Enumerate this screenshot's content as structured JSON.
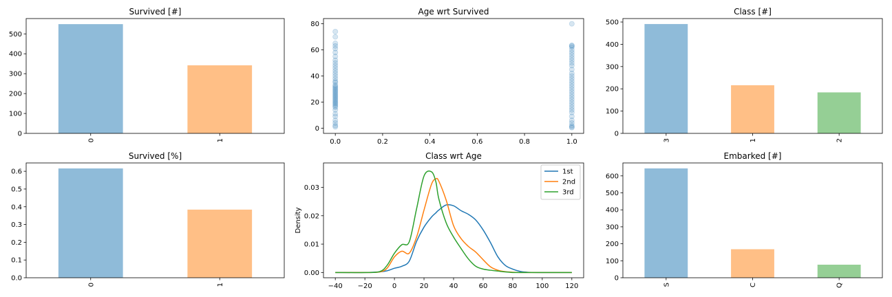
{
  "chart_data": [
    {
      "id": "survived_count",
      "type": "bar",
      "title": "Survived [#]",
      "categories": [
        "0",
        "1"
      ],
      "values": [
        549,
        342
      ],
      "colors": [
        "#8fbbd9",
        "#ffbf86"
      ],
      "ylim": [
        0,
        577
      ],
      "yticks": [
        0,
        100,
        200,
        300,
        400,
        500
      ],
      "xlabel": "",
      "ylabel": ""
    },
    {
      "id": "age_wrt_survived",
      "type": "scatter",
      "title": "Age wrt Survived",
      "color": "#1f77b4",
      "alpha": 0.1,
      "xlim": [
        -0.05,
        1.05
      ],
      "ylim": [
        -4,
        84
      ],
      "xticks": [
        "0.0",
        "0.2",
        "0.4",
        "0.6",
        "0.8",
        "1.0"
      ],
      "yticks": [
        "0",
        "20",
        "40",
        "60",
        "80"
      ],
      "x": [
        0,
        0,
        0,
        0,
        0,
        0,
        0,
        0,
        0,
        0,
        0,
        0,
        0,
        0,
        0,
        0,
        0,
        0,
        0,
        0,
        0,
        0,
        0,
        0,
        0,
        0,
        0,
        0,
        0,
        0,
        0,
        0,
        0,
        0,
        0,
        0,
        0,
        0,
        0,
        0,
        0,
        0,
        1,
        1,
        1,
        1,
        1,
        1,
        1,
        1,
        1,
        1,
        1,
        1,
        1,
        1,
        1,
        1,
        1,
        1,
        1,
        1,
        1,
        1,
        1,
        1,
        1,
        1,
        1,
        1,
        1,
        1,
        1,
        1,
        1,
        1
      ],
      "y": [
        1,
        2,
        4,
        6,
        9,
        11,
        14,
        16,
        17,
        18,
        19,
        20,
        21,
        22,
        23,
        24,
        25,
        26,
        27,
        28,
        29,
        30,
        31,
        32,
        33,
        35,
        36,
        38,
        40,
        42,
        44,
        46,
        48,
        50,
        52,
        55,
        58,
        61,
        63,
        65,
        70,
        74,
        0.4,
        1,
        2,
        4,
        6,
        9,
        12,
        14,
        16,
        18,
        20,
        22,
        24,
        26,
        28,
        30,
        32,
        34,
        36,
        38,
        40,
        42,
        45,
        48,
        50,
        52,
        54,
        56,
        58,
        60,
        62,
        63,
        63.5,
        80
      ],
      "xlabel": "",
      "ylabel": ""
    },
    {
      "id": "class_count",
      "type": "bar",
      "title": "Class [#]",
      "categories": [
        "3",
        "1",
        "2"
      ],
      "values": [
        491,
        216,
        184
      ],
      "colors": [
        "#8fbbd9",
        "#ffbf86",
        "#95cf95"
      ],
      "ylim": [
        0,
        515.5
      ],
      "yticks": [
        0,
        100,
        200,
        300,
        400,
        500
      ],
      "xlabel": "",
      "ylabel": ""
    },
    {
      "id": "survived_pct",
      "type": "bar",
      "title": "Survived [%]",
      "categories": [
        "0",
        "1"
      ],
      "values": [
        0.616,
        0.384
      ],
      "colors": [
        "#8fbbd9",
        "#ffbf86"
      ],
      "ylim": [
        0,
        0.647
      ],
      "yticks": [
        "0.0",
        "0.1",
        "0.2",
        "0.3",
        "0.4",
        "0.5",
        "0.6"
      ],
      "xlabel": "",
      "ylabel": ""
    },
    {
      "id": "class_wrt_age",
      "type": "line",
      "title": "Class wrt Age",
      "xlabel": "",
      "ylabel": "Density",
      "xlim": [
        -48,
        128
      ],
      "ylim": [
        -0.00185,
        0.0386
      ],
      "xticks": [
        -40,
        -20,
        0,
        20,
        40,
        60,
        80,
        100,
        120
      ],
      "yticks": [
        "0.00",
        "0.01",
        "0.02",
        "0.03"
      ],
      "legend_position": "top-right",
      "x": [
        -40,
        -20,
        -10,
        -5,
        0,
        5,
        10,
        15,
        20,
        25,
        28,
        30,
        35,
        40,
        45,
        50,
        55,
        60,
        65,
        70,
        75,
        80,
        85,
        90,
        100,
        120
      ],
      "series": [
        {
          "name": "1st",
          "color": "#1f77b4",
          "values": [
            0,
            0,
            0.0002,
            0.0006,
            0.0015,
            0.0022,
            0.004,
            0.011,
            0.016,
            0.0195,
            0.021,
            0.022,
            0.0238,
            0.0235,
            0.0218,
            0.0205,
            0.0185,
            0.015,
            0.0105,
            0.0055,
            0.0025,
            0.0012,
            0.0004,
            0.0001,
            0,
            0
          ]
        },
        {
          "name": "2nd",
          "color": "#ff7f0e",
          "values": [
            0,
            0,
            0.0002,
            0.0015,
            0.0055,
            0.0075,
            0.0068,
            0.0125,
            0.022,
            0.031,
            0.033,
            0.0322,
            0.0255,
            0.0165,
            0.012,
            0.0092,
            0.0072,
            0.0045,
            0.002,
            0.0008,
            0.0003,
            0.0001,
            0,
            0,
            0,
            0
          ]
        },
        {
          "name": "3rd",
          "color": "#2ca02c",
          "values": [
            0,
            0,
            0.0003,
            0.0025,
            0.0068,
            0.0098,
            0.0108,
            0.0225,
            0.034,
            0.0355,
            0.032,
            0.026,
            0.0175,
            0.0125,
            0.0085,
            0.0048,
            0.0022,
            0.0012,
            0.0008,
            0.0005,
            0.0002,
            0,
            0,
            0,
            0,
            0
          ]
        }
      ]
    },
    {
      "id": "embarked_count",
      "type": "bar",
      "title": "Embarked [#]",
      "categories": [
        "S",
        "C",
        "Q"
      ],
      "values": [
        644,
        168,
        77
      ],
      "colors": [
        "#8fbbd9",
        "#ffbf86",
        "#95cf95"
      ],
      "ylim": [
        0,
        676.2
      ],
      "yticks": [
        0,
        100,
        200,
        300,
        400,
        500,
        600
      ],
      "xlabel": "",
      "ylabel": ""
    }
  ]
}
